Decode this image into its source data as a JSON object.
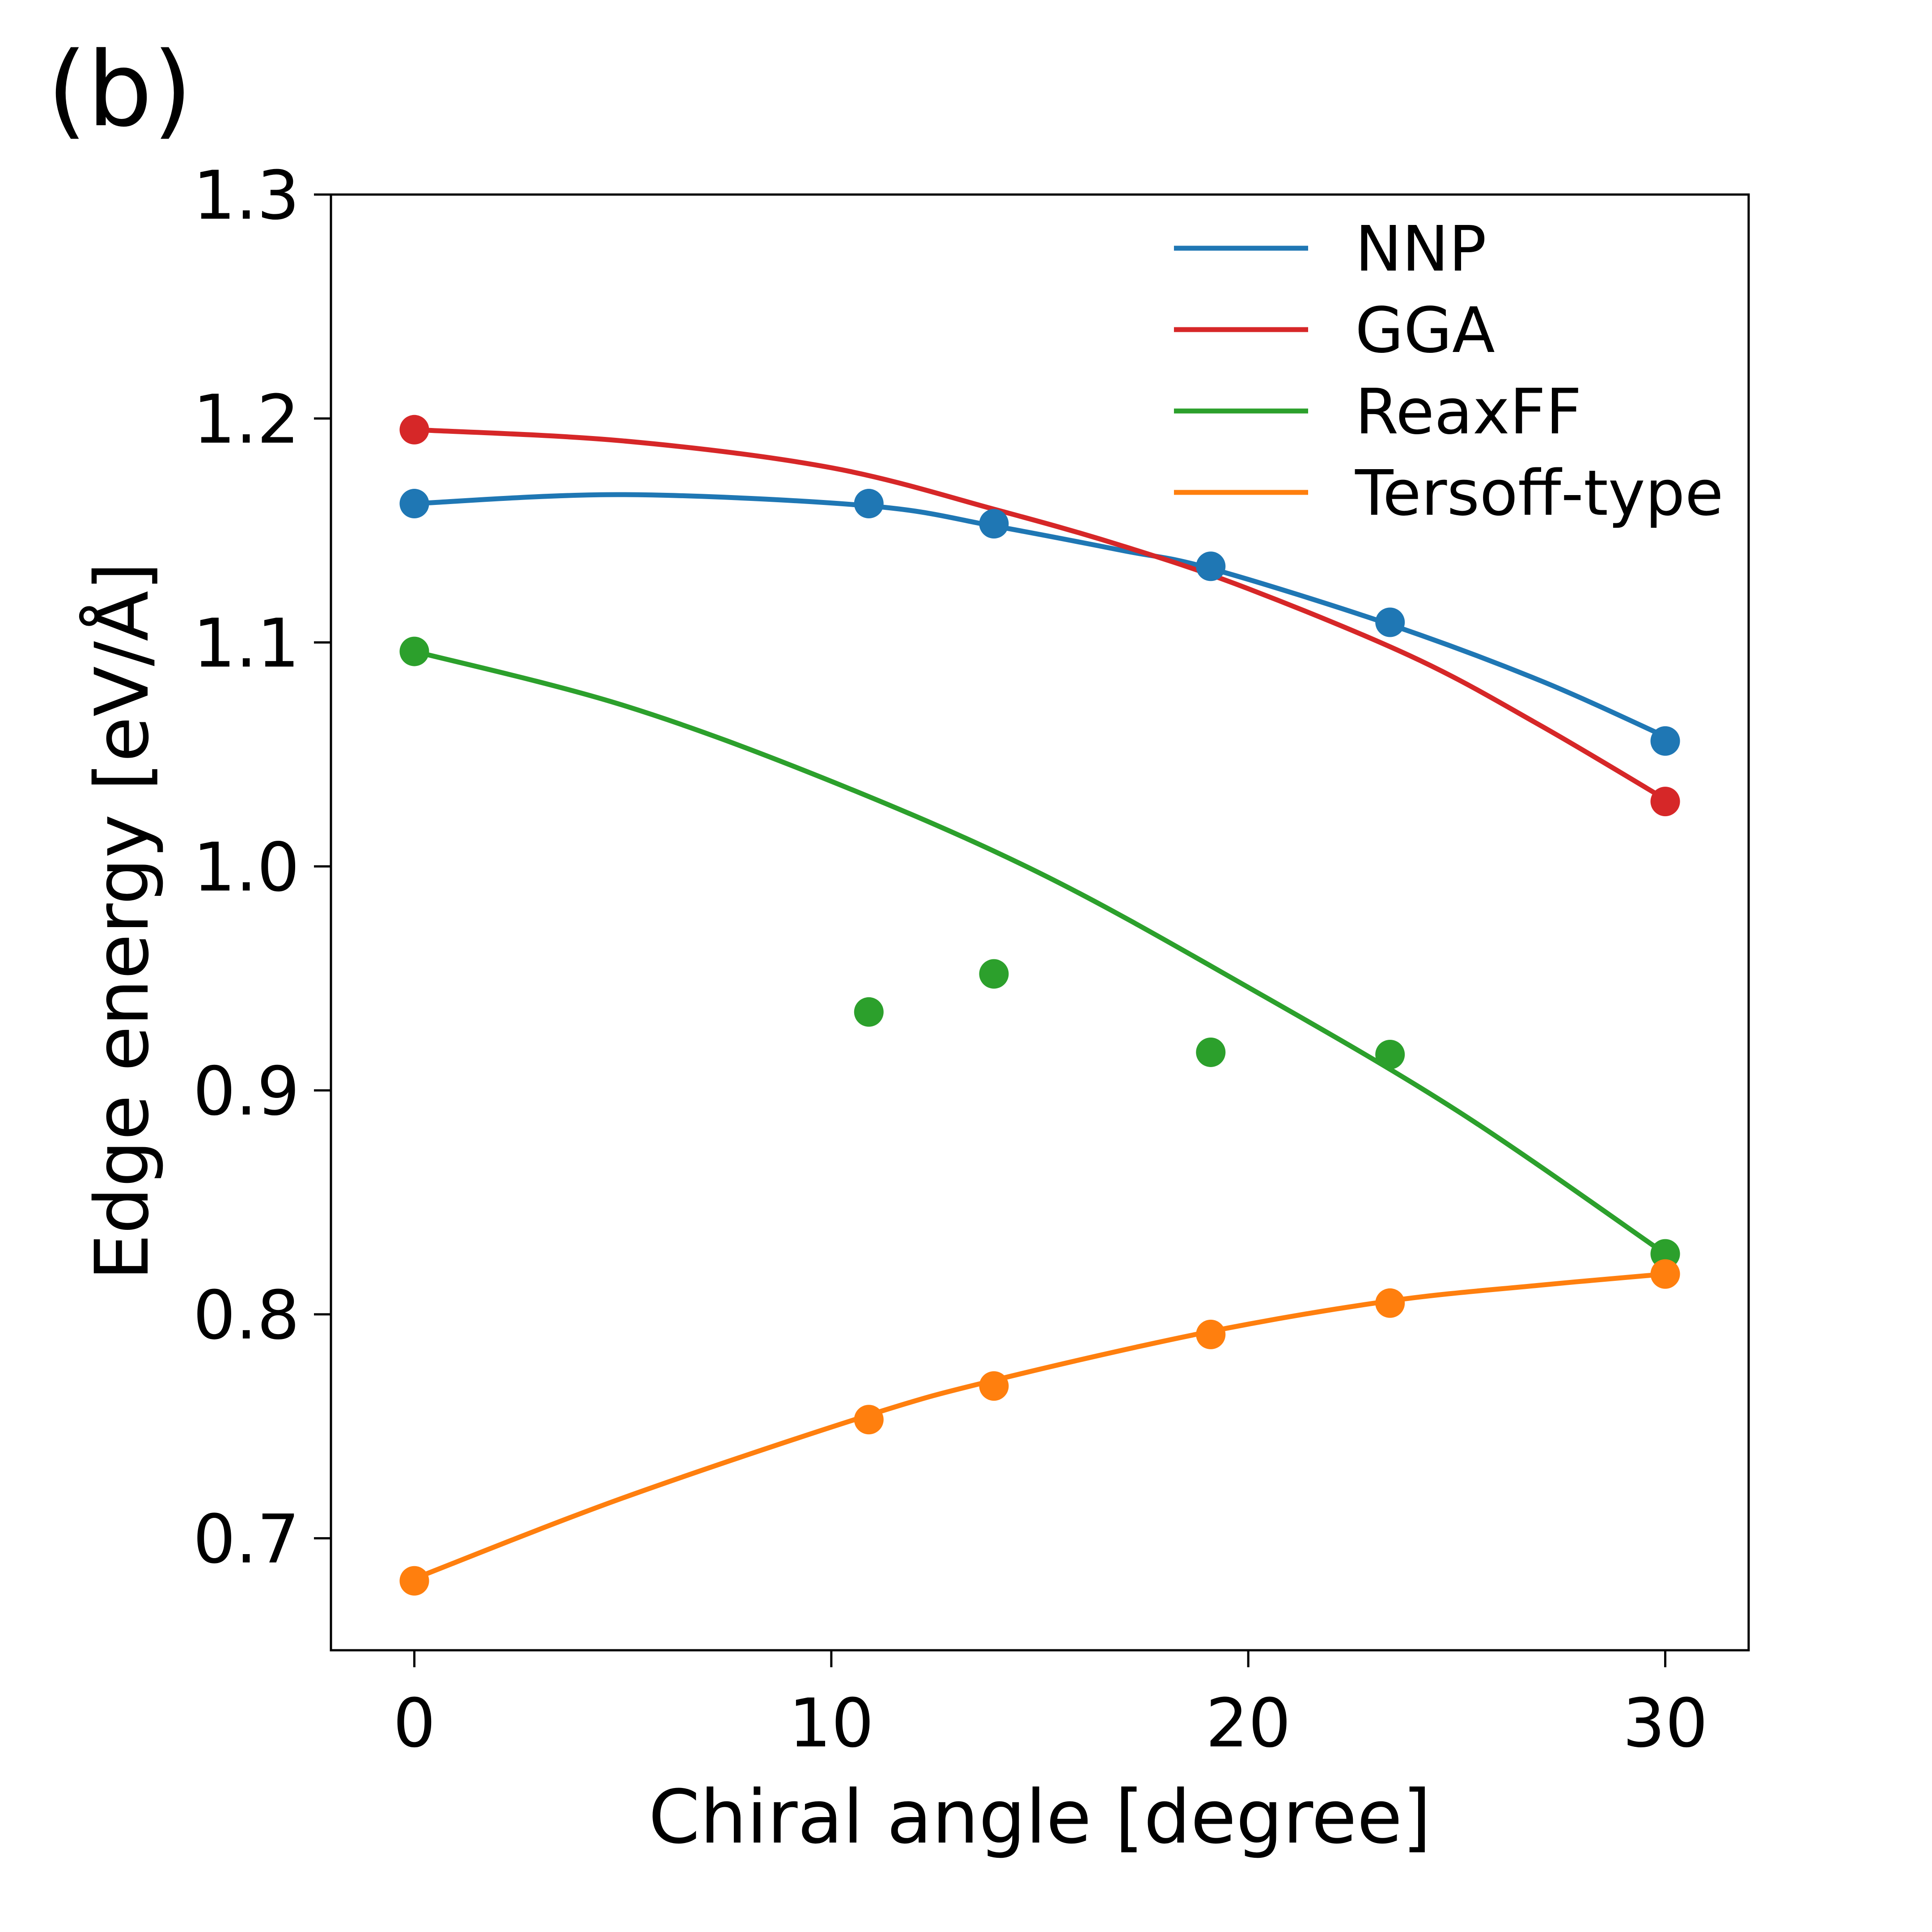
{
  "panel_label": "(b)",
  "chart_data": {
    "type": "scatter",
    "title": "",
    "xlabel": "Chiral angle [degree]",
    "ylabel": "Edge energy [eV/Å]",
    "xlim": [
      -2,
      32
    ],
    "ylim": [
      0.65,
      1.3
    ],
    "x_ticks": [
      0,
      10,
      20,
      30
    ],
    "y_ticks": [
      0.7,
      0.8,
      0.9,
      1.0,
      1.1,
      1.2,
      1.3
    ],
    "x_tick_labels": [
      "0",
      "10",
      "20",
      "30"
    ],
    "y_tick_labels": [
      "0.7",
      "0.8",
      "0.9",
      "1.0",
      "1.1",
      "1.2",
      "1.3"
    ],
    "legend_position": "top-right",
    "series": [
      {
        "name": "NNP",
        "color": "#1f77b4",
        "points": {
          "x": [
            0,
            10.9,
            13.9,
            19.1,
            23.4,
            30
          ],
          "y": [
            1.162,
            1.162,
            1.153,
            1.134,
            1.109,
            1.056
          ]
        },
        "fit": {
          "x": [
            0,
            5,
            10.9,
            13.9,
            17,
            19.1,
            23.4,
            27,
            30
          ],
          "y": [
            1.162,
            1.166,
            1.161,
            1.152,
            1.141,
            1.133,
            1.108,
            1.083,
            1.058
          ]
        }
      },
      {
        "name": "GGA",
        "color": "#d62728",
        "points": {
          "x": [
            0,
            30
          ],
          "y": [
            1.195,
            1.029
          ]
        },
        "fit": {
          "x": [
            0,
            5,
            10,
            14,
            17,
            20,
            24,
            27,
            30
          ],
          "y": [
            1.195,
            1.19,
            1.178,
            1.159,
            1.143,
            1.124,
            1.093,
            1.063,
            1.03
          ]
        }
      },
      {
        "name": "ReaxFF",
        "color": "#2ca02c",
        "points": {
          "x": [
            0,
            10.9,
            13.9,
            19.1,
            23.4,
            30
          ],
          "y": [
            1.096,
            0.935,
            0.952,
            0.917,
            0.916,
            0.827
          ]
        },
        "fit": {
          "x": [
            0,
            5,
            10,
            15,
            20,
            25,
            30
          ],
          "y": [
            1.096,
            1.072,
            1.038,
            0.997,
            0.946,
            0.891,
            0.827
          ]
        }
      },
      {
        "name": "Tersoff-type",
        "color": "#ff7f0e",
        "points": {
          "x": [
            0,
            10.9,
            13.9,
            19.1,
            23.4,
            30
          ],
          "y": [
            0.681,
            0.753,
            0.768,
            0.791,
            0.805,
            0.818
          ]
        },
        "fit": {
          "x": [
            0,
            5,
            10.9,
            14,
            19,
            23.4,
            27,
            30
          ],
          "y": [
            0.682,
            0.718,
            0.755,
            0.771,
            0.792,
            0.806,
            0.813,
            0.818
          ]
        }
      }
    ]
  }
}
